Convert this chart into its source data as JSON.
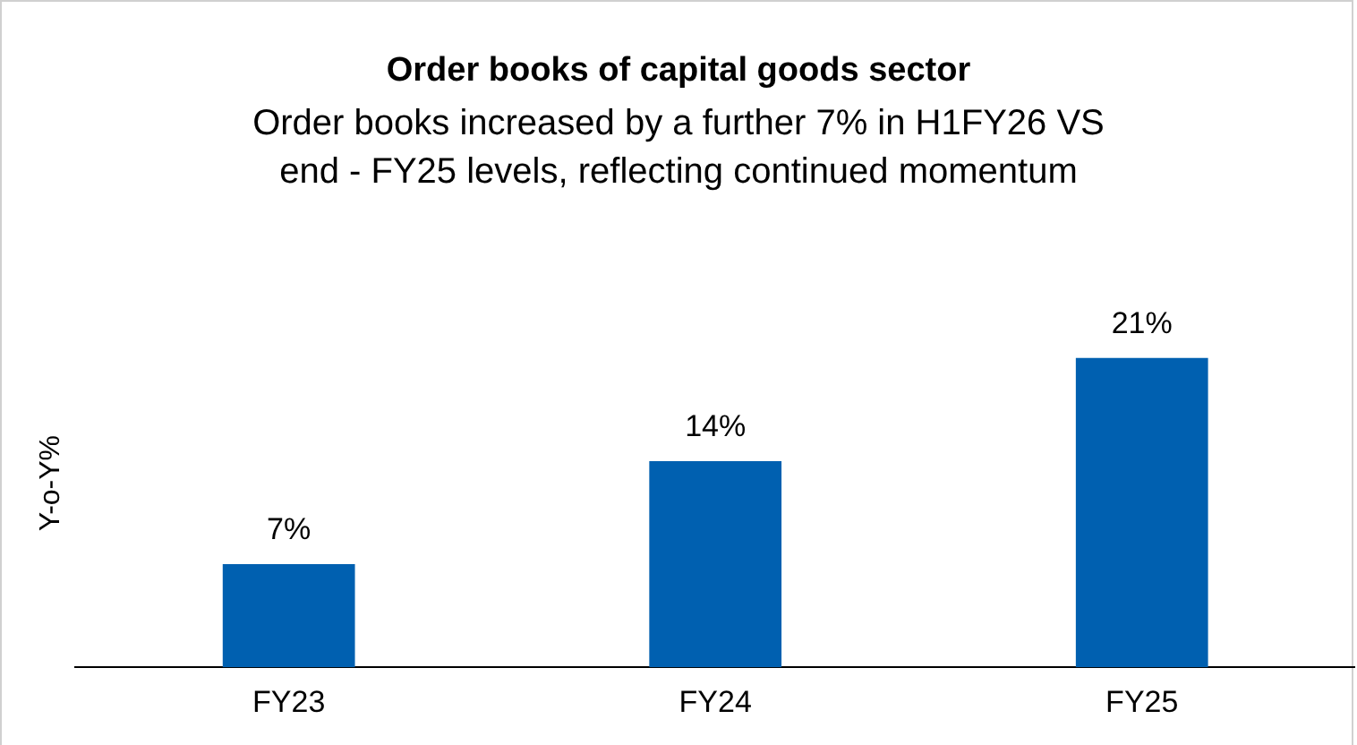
{
  "chart_data": {
    "type": "bar",
    "title": "Order books of capital goods sector",
    "subtitle": "Order books increased by a further 7% in H1FY26 VS end - FY25 levels, reflecting continued momentum",
    "ylabel": "Y-o-Y%",
    "categories": [
      "FY23",
      "FY24",
      "FY25"
    ],
    "values": [
      7,
      14,
      21
    ],
    "value_labels": [
      "7%",
      "14%",
      "21%"
    ],
    "color": "#0060b0",
    "relative": false,
    "grid": false,
    "legend": false
  }
}
